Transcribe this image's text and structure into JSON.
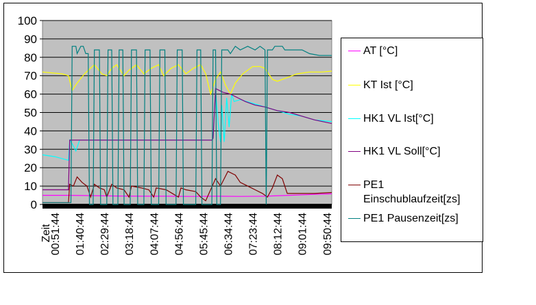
{
  "chart_data": {
    "type": "line",
    "x_label": "Zeit",
    "x_ticks": [
      "00:51:44",
      "01:40:44",
      "02:29:44",
      "03:18:44",
      "04:07:44",
      "04:56:44",
      "05:45:44",
      "06:34:44",
      "07:23:44",
      "08:12:44",
      "09:01:44",
      "09:50:44"
    ],
    "y_ticks": [
      "0",
      "10",
      "20",
      "30",
      "40",
      "50",
      "60",
      "70",
      "80",
      "90",
      "100"
    ],
    "ylim": [
      0,
      100
    ],
    "x_range": [
      0,
      11.7
    ],
    "grid": true,
    "plot_background": "#c0c0c0",
    "legend_position": "right",
    "series": [
      {
        "name": "AT [°C]",
        "color": "#ff00ff",
        "points": [
          [
            0,
            5
          ],
          [
            1,
            5
          ],
          [
            2,
            4.8
          ],
          [
            3,
            4.6
          ],
          [
            4,
            4.5
          ],
          [
            5,
            4.5
          ],
          [
            6,
            4.4
          ],
          [
            7,
            4.5
          ],
          [
            8,
            4.4
          ],
          [
            9,
            4.5
          ],
          [
            10,
            5
          ],
          [
            11,
            5.5
          ],
          [
            11.7,
            5.8
          ]
        ]
      },
      {
        "name": "KT Ist [°C]",
        "color": "#ffff00",
        "points": [
          [
            0,
            72
          ],
          [
            0.8,
            71
          ],
          [
            1.05,
            70
          ],
          [
            1.2,
            62
          ],
          [
            1.4,
            66
          ],
          [
            1.7,
            71
          ],
          [
            2.1,
            76
          ],
          [
            2.4,
            71
          ],
          [
            2.6,
            70
          ],
          [
            2.8,
            74
          ],
          [
            3.0,
            76
          ],
          [
            3.3,
            70
          ],
          [
            3.5,
            73
          ],
          [
            3.8,
            76
          ],
          [
            4.1,
            71
          ],
          [
            4.4,
            74
          ],
          [
            4.7,
            76
          ],
          [
            4.9,
            70
          ],
          [
            5.2,
            74
          ],
          [
            5.5,
            76
          ],
          [
            5.8,
            71
          ],
          [
            6.1,
            74
          ],
          [
            6.4,
            76
          ],
          [
            6.6,
            71
          ],
          [
            6.8,
            60
          ],
          [
            7.0,
            68
          ],
          [
            7.2,
            72
          ],
          [
            7.4,
            65
          ],
          [
            7.6,
            60
          ],
          [
            7.8,
            66
          ],
          [
            8.1,
            71
          ],
          [
            8.5,
            75
          ],
          [
            8.8,
            75
          ],
          [
            9.0,
            74
          ],
          [
            9.3,
            68
          ],
          [
            9.5,
            67
          ],
          [
            9.9,
            69
          ],
          [
            10.3,
            71
          ],
          [
            10.8,
            72
          ],
          [
            11.3,
            72
          ],
          [
            11.7,
            72.5
          ]
        ]
      },
      {
        "name": "HK1 VL Ist[°C]",
        "color": "#00ffff",
        "points": [
          [
            0,
            27
          ],
          [
            0.5,
            26
          ],
          [
            1.05,
            24
          ],
          [
            1.1,
            35
          ],
          [
            1.2,
            33
          ],
          [
            1.35,
            29
          ],
          [
            1.5,
            35
          ],
          [
            6.85,
            35
          ],
          [
            6.9,
            36
          ],
          [
            7.0,
            62
          ],
          [
            7.1,
            45
          ],
          [
            7.2,
            34
          ],
          [
            7.25,
            54
          ],
          [
            7.35,
            34
          ],
          [
            7.45,
            58
          ],
          [
            7.55,
            42
          ],
          [
            7.65,
            60
          ],
          [
            7.75,
            56
          ],
          [
            8.0,
            57
          ],
          [
            8.5,
            55
          ],
          [
            9.0,
            53
          ],
          [
            9.5,
            51
          ],
          [
            10.0,
            49
          ],
          [
            10.5,
            48
          ],
          [
            11.0,
            46
          ],
          [
            11.7,
            45
          ]
        ]
      },
      {
        "name": "HK1 VL Soll[°C]",
        "color": "#800080",
        "points": [
          [
            0,
            8
          ],
          [
            1.05,
            8
          ],
          [
            1.1,
            35
          ],
          [
            6.85,
            35
          ],
          [
            6.9,
            36
          ],
          [
            7.0,
            63
          ],
          [
            7.3,
            61
          ],
          [
            7.6,
            60
          ],
          [
            7.9,
            58
          ],
          [
            8.2,
            56
          ],
          [
            8.6,
            54
          ],
          [
            9.0,
            53
          ],
          [
            9.5,
            51
          ],
          [
            10.0,
            50
          ],
          [
            10.5,
            48
          ],
          [
            11.0,
            46
          ],
          [
            11.7,
            44
          ]
        ]
      },
      {
        "name": "PE1\nEinschublaufzeit[zs]",
        "color": "#800000",
        "points": [
          [
            0,
            1
          ],
          [
            1.05,
            1
          ],
          [
            1.1,
            11
          ],
          [
            1.25,
            10
          ],
          [
            1.4,
            15
          ],
          [
            1.6,
            12
          ],
          [
            1.8,
            10
          ],
          [
            1.95,
            4
          ],
          [
            2.1,
            11
          ],
          [
            2.3,
            9
          ],
          [
            2.5,
            8
          ],
          [
            2.6,
            4
          ],
          [
            2.8,
            11
          ],
          [
            3.0,
            9
          ],
          [
            3.3,
            8
          ],
          [
            3.5,
            4
          ],
          [
            3.6,
            10
          ],
          [
            4.0,
            9
          ],
          [
            4.3,
            8
          ],
          [
            4.5,
            4
          ],
          [
            4.6,
            9
          ],
          [
            5.0,
            8
          ],
          [
            5.5,
            4
          ],
          [
            5.6,
            9
          ],
          [
            5.8,
            8
          ],
          [
            6.2,
            7
          ],
          [
            6.4,
            4
          ],
          [
            6.6,
            2
          ],
          [
            7.0,
            14
          ],
          [
            7.2,
            10
          ],
          [
            7.5,
            18
          ],
          [
            7.8,
            16
          ],
          [
            8.0,
            12
          ],
          [
            8.3,
            10
          ],
          [
            8.6,
            8
          ],
          [
            8.9,
            6
          ],
          [
            9.1,
            4
          ],
          [
            9.3,
            9
          ],
          [
            9.5,
            16
          ],
          [
            9.7,
            14
          ],
          [
            9.9,
            6
          ],
          [
            10.3,
            6
          ],
          [
            11.0,
            6
          ],
          [
            11.7,
            6.5
          ]
        ]
      },
      {
        "name": "PE1 Pausenzeit[zs]",
        "color": "#008080",
        "points": [
          [
            0,
            1
          ],
          [
            1.15,
            1
          ],
          [
            1.2,
            86
          ],
          [
            1.35,
            86
          ],
          [
            1.4,
            82
          ],
          [
            1.55,
            86
          ],
          [
            1.65,
            86
          ],
          [
            1.75,
            82
          ],
          [
            1.85,
            82
          ],
          [
            1.9,
            0
          ],
          [
            2.05,
            0
          ],
          [
            2.1,
            84
          ],
          [
            2.3,
            84
          ],
          [
            2.35,
            0
          ],
          [
            2.6,
            0
          ],
          [
            2.65,
            84
          ],
          [
            2.8,
            84
          ],
          [
            2.85,
            0
          ],
          [
            3.05,
            0
          ],
          [
            3.1,
            84
          ],
          [
            3.25,
            84
          ],
          [
            3.3,
            0
          ],
          [
            3.55,
            0
          ],
          [
            3.6,
            84
          ],
          [
            3.8,
            84
          ],
          [
            3.85,
            0
          ],
          [
            4.1,
            0
          ],
          [
            4.15,
            84
          ],
          [
            4.35,
            84
          ],
          [
            4.4,
            0
          ],
          [
            4.7,
            0
          ],
          [
            4.75,
            84
          ],
          [
            4.95,
            84
          ],
          [
            5.0,
            0
          ],
          [
            5.4,
            0
          ],
          [
            5.45,
            84
          ],
          [
            5.65,
            84
          ],
          [
            5.7,
            0
          ],
          [
            6.2,
            0
          ],
          [
            6.25,
            84
          ],
          [
            6.4,
            84
          ],
          [
            6.45,
            0
          ],
          [
            6.85,
            0
          ],
          [
            6.9,
            84
          ],
          [
            7.0,
            84
          ],
          [
            7.05,
            0
          ],
          [
            7.2,
            0
          ],
          [
            7.25,
            84
          ],
          [
            7.5,
            84
          ],
          [
            7.6,
            82
          ],
          [
            7.8,
            86
          ],
          [
            8.0,
            84
          ],
          [
            8.3,
            86
          ],
          [
            8.6,
            84
          ],
          [
            8.8,
            86
          ],
          [
            9.0,
            84
          ],
          [
            9.05,
            0
          ],
          [
            9.1,
            84
          ],
          [
            9.3,
            84
          ],
          [
            9.4,
            86
          ],
          [
            9.7,
            86
          ],
          [
            9.8,
            84
          ],
          [
            10.2,
            84
          ],
          [
            10.5,
            84
          ],
          [
            10.8,
            82
          ],
          [
            11.2,
            81
          ],
          [
            11.7,
            81
          ]
        ]
      }
    ]
  }
}
